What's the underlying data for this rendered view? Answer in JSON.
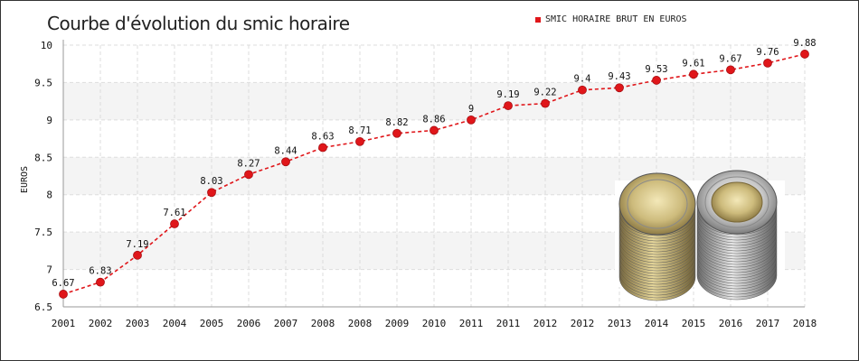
{
  "chart_data": {
    "type": "line",
    "title": "Courbe d'évolution du smic horaire",
    "ylabel": "EUROS",
    "xlabel": "",
    "ylim": [
      6.5,
      10
    ],
    "yticks": [
      "6.5",
      "7",
      "7.5",
      "8",
      "8.5",
      "9",
      "9.5",
      "10"
    ],
    "grid": true,
    "legend_position": "top-right",
    "categories": [
      "2001",
      "2002",
      "2003",
      "2004",
      "2005",
      "2006",
      "2007",
      "2008",
      "2008",
      "2009",
      "2010",
      "2011",
      "2011",
      "2012",
      "2012",
      "2013",
      "2014",
      "2015",
      "2016",
      "2017",
      "2018"
    ],
    "series": [
      {
        "name": "SMIC HORAIRE BRUT EN EUROS",
        "color": "#e0161a",
        "values": [
          6.67,
          6.83,
          7.19,
          7.61,
          8.03,
          8.27,
          8.44,
          8.63,
          8.71,
          8.82,
          8.86,
          9,
          9.19,
          9.22,
          9.4,
          9.43,
          9.53,
          9.61,
          9.67,
          9.76,
          9.88
        ],
        "labels": [
          "6.67",
          "6.83",
          "7.19",
          "7.61",
          "8.03",
          "8.27",
          "8.44",
          "8.63",
          "8.71",
          "8.82",
          "8.86",
          "9",
          "9.19",
          "9.22",
          "9.4",
          "9.43",
          "9.53",
          "9.61",
          "9.67",
          "9.76",
          "9.88"
        ]
      }
    ],
    "image_icon": "euro-coins-stack-image"
  }
}
